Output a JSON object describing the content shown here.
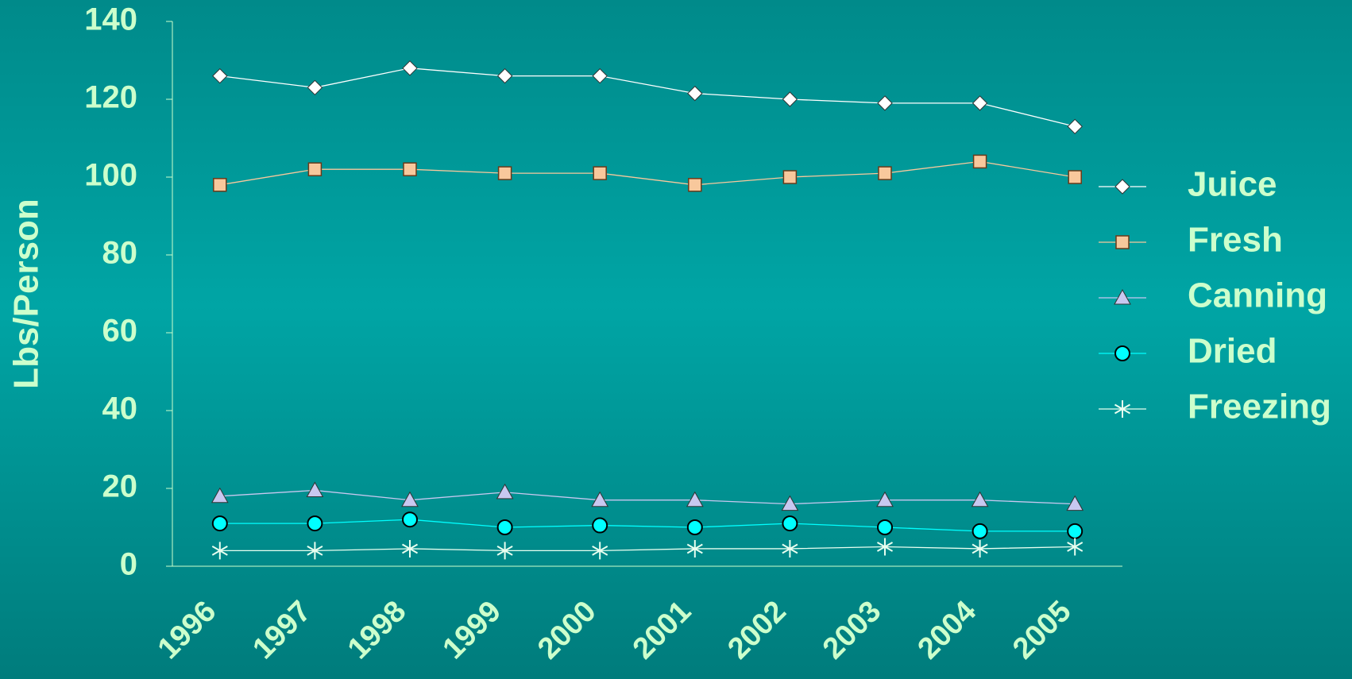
{
  "chart_data": {
    "type": "line",
    "y_label": "Lbs/Person",
    "categories": [
      "1996",
      "1997",
      "1998",
      "1999",
      "2000",
      "2001",
      "2002",
      "2003",
      "2004",
      "2005"
    ],
    "series": [
      {
        "name": "Juice",
        "color": "#ffffff",
        "marker": "diamond",
        "values": [
          126,
          123,
          128,
          126,
          126,
          121.5,
          120,
          119,
          119,
          113
        ]
      },
      {
        "name": "Fresh",
        "color": "#f8c89c",
        "marker": "square",
        "values": [
          98,
          102,
          102,
          101,
          101,
          98,
          100,
          101,
          104,
          100
        ]
      },
      {
        "name": "Canning",
        "color": "#c8c8f0",
        "marker": "triangle",
        "values": [
          18,
          19.5,
          17,
          19,
          17,
          17,
          16,
          17,
          17,
          16
        ]
      },
      {
        "name": "Dried",
        "color": "#00ffff",
        "marker": "circle",
        "values": [
          11,
          11,
          12,
          10,
          10.5,
          10,
          11,
          10,
          9,
          9
        ]
      },
      {
        "name": "Freezing",
        "color": "#e8fff0",
        "marker": "star",
        "values": [
          4,
          4,
          4.5,
          4,
          4,
          4.5,
          4.5,
          5,
          4.5,
          5
        ]
      }
    ],
    "ylim": [
      0,
      140
    ],
    "yticks": [
      0,
      20,
      40,
      60,
      80,
      100,
      120,
      140
    ],
    "legend": "right",
    "grid": false
  }
}
